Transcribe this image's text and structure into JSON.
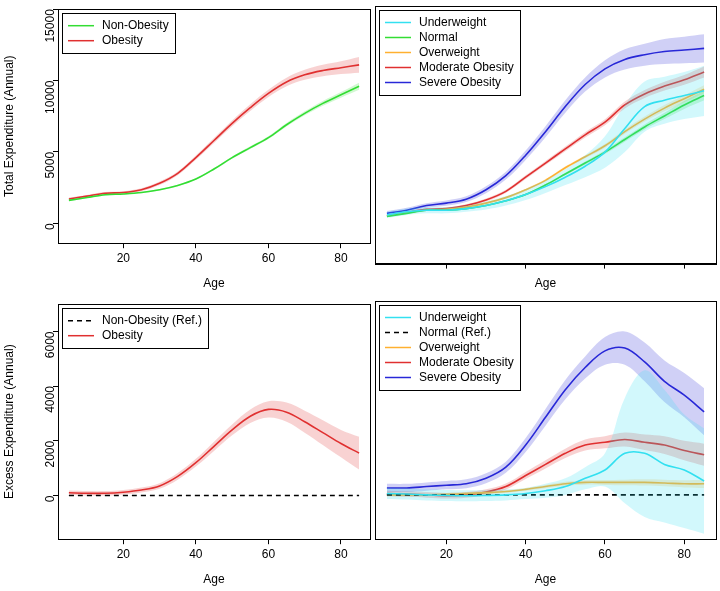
{
  "chart_data": [
    {
      "type": "line",
      "x_label": "Age",
      "y_label": "Total Expenditure (Annual)",
      "x": [
        5,
        10,
        15,
        20,
        25,
        30,
        35,
        40,
        45,
        50,
        55,
        60,
        65,
        70,
        75,
        80,
        85
      ],
      "xlim": [
        2,
        88
      ],
      "xticks": [
        20,
        40,
        60,
        80
      ],
      "ylim": [
        -1400,
        15000
      ],
      "yticks": [
        0,
        5000,
        10000,
        15000
      ],
      "grid": false,
      "legend": "top-left",
      "series": [
        {
          "name": "Non-Obesity",
          "color": "#33dd33",
          "values": [
            1600,
            1800,
            2000,
            2050,
            2150,
            2350,
            2650,
            3100,
            3800,
            4600,
            5300,
            6000,
            6900,
            7700,
            8400,
            9000,
            9600
          ],
          "lower": [
            1550,
            1750,
            1950,
            2000,
            2100,
            2300,
            2600,
            3040,
            3730,
            4520,
            5210,
            5900,
            6780,
            7560,
            8230,
            8800,
            9350
          ],
          "upper": [
            1650,
            1850,
            2050,
            2100,
            2200,
            2400,
            2700,
            3160,
            3870,
            4680,
            5390,
            6100,
            7020,
            7840,
            8570,
            9200,
            9850
          ]
        },
        {
          "name": "Obesity",
          "color": "#e03030",
          "values": [
            1700,
            1900,
            2100,
            2150,
            2350,
            2800,
            3500,
            4600,
            5800,
            7000,
            8100,
            9100,
            9900,
            10400,
            10700,
            10900,
            11100
          ],
          "lower": [
            1600,
            1820,
            2020,
            2060,
            2250,
            2680,
            3370,
            4450,
            5630,
            6800,
            7870,
            8850,
            9600,
            10050,
            10300,
            10450,
            10550
          ],
          "upper": [
            1800,
            1980,
            2180,
            2240,
            2450,
            2920,
            3630,
            4750,
            5970,
            7200,
            8330,
            9350,
            10200,
            10750,
            11100,
            11350,
            11650
          ]
        }
      ]
    },
    {
      "type": "line",
      "x_label": "Age",
      "x": [
        5,
        10,
        15,
        20,
        25,
        30,
        35,
        40,
        45,
        50,
        55,
        60,
        65,
        70,
        75,
        80,
        85
      ],
      "xlim": [
        2,
        88
      ],
      "xticks": [
        20,
        40,
        60,
        80
      ],
      "ylim": [
        -1400,
        15000
      ],
      "grid": false,
      "legend": "top-left",
      "tick_labels": false,
      "series": [
        {
          "name": "Underweight",
          "color": "#33e0f0",
          "values": [
            1700,
            1900,
            2000,
            2000,
            2100,
            2300,
            2600,
            3000,
            3500,
            4100,
            4800,
            5700,
            7200,
            8600,
            9000,
            9300,
            9600
          ],
          "lower": [
            1500,
            1700,
            1800,
            1800,
            1900,
            2050,
            2300,
            2650,
            3100,
            3600,
            4100,
            4700,
            5700,
            7000,
            7500,
            7800,
            8000
          ],
          "upper": [
            1900,
            2100,
            2200,
            2200,
            2300,
            2550,
            2900,
            3350,
            3900,
            4600,
            5500,
            6700,
            8700,
            10200,
            10500,
            10800,
            11200
          ]
        },
        {
          "name": "Normal",
          "color": "#33dd33",
          "values": [
            1600,
            1800,
            2000,
            2000,
            2100,
            2300,
            2600,
            3000,
            3600,
            4300,
            5000,
            5700,
            6500,
            7300,
            8000,
            8700,
            9300
          ],
          "lower": [
            1560,
            1760,
            1960,
            1960,
            2060,
            2250,
            2550,
            2940,
            3530,
            4220,
            4900,
            5580,
            6360,
            7140,
            7800,
            8450,
            9000
          ],
          "upper": [
            1640,
            1840,
            2040,
            2040,
            2140,
            2350,
            2650,
            3060,
            3670,
            4380,
            5100,
            5820,
            6640,
            7460,
            8200,
            8950,
            9600
          ]
        },
        {
          "name": "Overweight",
          "color": "#ffb030",
          "values": [
            1650,
            1850,
            2000,
            2050,
            2200,
            2450,
            2800,
            3300,
            3900,
            4700,
            5400,
            6100,
            7000,
            7800,
            8500,
            9100,
            9700
          ],
          "lower": [
            1610,
            1810,
            1960,
            2010,
            2150,
            2400,
            2740,
            3230,
            3820,
            4610,
            5300,
            5980,
            6860,
            7640,
            8300,
            8880,
            9450
          ],
          "upper": [
            1690,
            1890,
            2040,
            2090,
            2250,
            2500,
            2860,
            3370,
            3980,
            4790,
            5500,
            6220,
            7140,
            7960,
            8700,
            9320,
            9950
          ]
        },
        {
          "name": "Moderate Obesity",
          "color": "#e03030",
          "values": [
            1650,
            1850,
            2050,
            2100,
            2300,
            2650,
            3200,
            4100,
            5000,
            5900,
            6800,
            7600,
            8700,
            9400,
            9900,
            10300,
            10800
          ],
          "lower": [
            1580,
            1780,
            1980,
            2030,
            2220,
            2560,
            3100,
            3980,
            4870,
            5750,
            6630,
            7410,
            8480,
            9150,
            9620,
            9990,
            10450
          ],
          "upper": [
            1720,
            1920,
            2120,
            2170,
            2380,
            2740,
            3300,
            4220,
            5130,
            6050,
            6970,
            7790,
            8920,
            9650,
            10180,
            10610,
            11150
          ]
        },
        {
          "name": "Severe Obesity",
          "color": "#2828d8",
          "values": [
            1800,
            2000,
            2300,
            2450,
            2700,
            3300,
            4200,
            5500,
            7000,
            8600,
            10000,
            11000,
            11600,
            11900,
            12100,
            12200,
            12300
          ],
          "lower": [
            1650,
            1850,
            2150,
            2280,
            2520,
            3080,
            3950,
            5200,
            6650,
            8200,
            9550,
            10450,
            10950,
            11200,
            11300,
            11350,
            11400
          ],
          "upper": [
            1950,
            2150,
            2450,
            2620,
            2880,
            3520,
            4450,
            5800,
            7350,
            9000,
            10450,
            11550,
            12250,
            12600,
            12900,
            13050,
            13200
          ]
        }
      ]
    },
    {
      "type": "line",
      "x_label": "Age",
      "y_label": "Excess Expenditure (Annual)",
      "x": [
        5,
        10,
        15,
        20,
        25,
        30,
        35,
        40,
        45,
        50,
        55,
        60,
        65,
        70,
        75,
        80,
        85
      ],
      "xlim": [
        2,
        88
      ],
      "xticks": [
        20,
        40,
        60,
        80
      ],
      "ylim": [
        -1600,
        7000
      ],
      "yticks": [
        0,
        2000,
        4000,
        6000
      ],
      "grid": false,
      "legend": "top-left",
      "series": [
        {
          "name": "Non-Obesity (Ref.)",
          "color": "#000000",
          "line_style": "dashed",
          "values": [
            0,
            0,
            0,
            0,
            0,
            0,
            0,
            0,
            0,
            0,
            0,
            0,
            0,
            0,
            0,
            0,
            0
          ]
        },
        {
          "name": "Obesity",
          "color": "#e03030",
          "values": [
            100,
            80,
            80,
            120,
            200,
            350,
            700,
            1200,
            1800,
            2400,
            2900,
            3150,
            3050,
            2700,
            2300,
            1900,
            1550
          ],
          "lower": [
            20,
            0,
            0,
            40,
            110,
            250,
            580,
            1060,
            1630,
            2200,
            2650,
            2850,
            2700,
            2300,
            1850,
            1400,
            950
          ],
          "upper": [
            180,
            160,
            160,
            200,
            290,
            450,
            820,
            1340,
            1970,
            2600,
            3150,
            3450,
            3400,
            3100,
            2750,
            2400,
            2150
          ]
        }
      ]
    },
    {
      "type": "line",
      "x_label": "Age",
      "x": [
        5,
        10,
        15,
        20,
        25,
        30,
        35,
        40,
        45,
        50,
        55,
        60,
        65,
        70,
        75,
        80,
        85
      ],
      "xlim": [
        2,
        88
      ],
      "xticks": [
        20,
        40,
        60,
        80
      ],
      "ylim": [
        -1600,
        7000
      ],
      "grid": false,
      "legend": "top-left",
      "tick_labels": "x",
      "series": [
        {
          "name": "Underweight",
          "color": "#33e0f0",
          "values": [
            50,
            30,
            0,
            -20,
            -30,
            -20,
            0,
            50,
            150,
            300,
            600,
            900,
            1500,
            1500,
            1100,
            900,
            500
          ],
          "lower": [
            -150,
            -170,
            -200,
            -220,
            -230,
            -220,
            -200,
            -150,
            -100,
            0,
            200,
            300,
            -300,
            -800,
            -1000,
            -1200,
            -1400
          ],
          "upper": [
            250,
            230,
            200,
            180,
            170,
            180,
            200,
            250,
            400,
            600,
            1000,
            1500,
            3500,
            4500,
            3800,
            2900,
            2400
          ]
        },
        {
          "name": "Normal (Ref.)",
          "color": "#000000",
          "line_style": "dashed",
          "values": [
            0,
            0,
            0,
            0,
            0,
            0,
            0,
            0,
            0,
            0,
            0,
            0,
            0,
            0,
            0,
            0,
            0
          ]
        },
        {
          "name": "Overweight",
          "color": "#ffb030",
          "values": [
            0,
            0,
            0,
            20,
            50,
            80,
            120,
            200,
            300,
            400,
            450,
            450,
            450,
            450,
            430,
            400,
            400
          ],
          "lower": [
            -50,
            -50,
            -50,
            -30,
            0,
            30,
            70,
            150,
            240,
            330,
            370,
            360,
            350,
            340,
            310,
            270,
            250
          ],
          "upper": [
            50,
            50,
            50,
            70,
            100,
            130,
            170,
            250,
            360,
            470,
            530,
            540,
            550,
            560,
            550,
            530,
            550
          ]
        },
        {
          "name": "Moderate Obesity",
          "color": "#e03030",
          "values": [
            50,
            30,
            0,
            -30,
            0,
            100,
            300,
            700,
            1100,
            1500,
            1800,
            1900,
            2000,
            1900,
            1800,
            1600,
            1450
          ],
          "lower": [
            -50,
            -70,
            -100,
            -130,
            -100,
            0,
            190,
            570,
            950,
            1330,
            1600,
            1680,
            1750,
            1620,
            1480,
            1250,
            1050
          ],
          "upper": [
            150,
            130,
            100,
            70,
            100,
            200,
            410,
            830,
            1250,
            1670,
            2000,
            2120,
            2250,
            2180,
            2120,
            1950,
            1850
          ]
        },
        {
          "name": "Severe Obesity",
          "color": "#2828d8",
          "values": [
            250,
            250,
            300,
            350,
            400,
            600,
            1000,
            1800,
            2800,
            3800,
            4600,
            5200,
            5300,
            4800,
            4100,
            3600,
            3000
          ],
          "lower": [
            100,
            100,
            150,
            200,
            240,
            420,
            800,
            1550,
            2500,
            3450,
            4200,
            4700,
            4700,
            4100,
            3350,
            2800,
            2150
          ],
          "upper": [
            400,
            400,
            450,
            500,
            560,
            780,
            1200,
            2050,
            3100,
            4150,
            5000,
            5700,
            5900,
            5500,
            4850,
            4400,
            3850
          ]
        }
      ]
    }
  ]
}
